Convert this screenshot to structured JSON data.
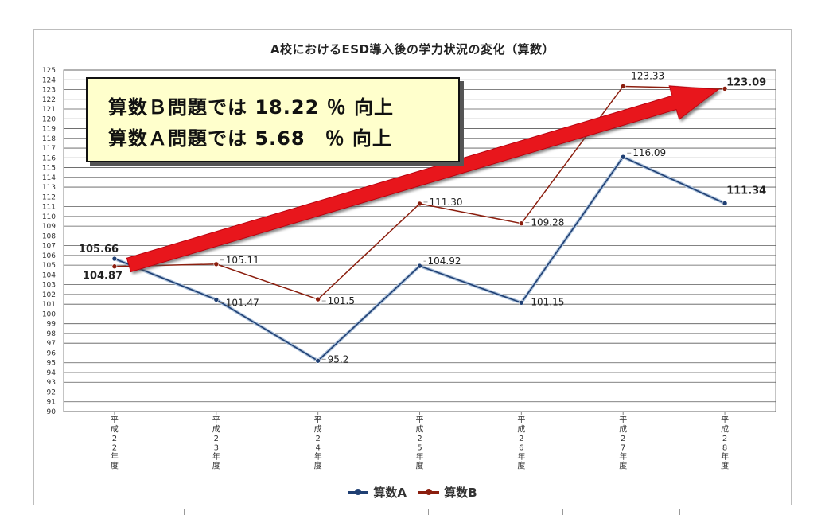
{
  "chart_data": {
    "type": "line",
    "title": "A校におけるESD導入後の学力状況の変化（算数）",
    "categories": [
      "平成22年度",
      "平成23年度",
      "平成24年度",
      "平成25年度",
      "平成26年度",
      "平成27年度",
      "平成28年度"
    ],
    "series": [
      {
        "name": "算数A",
        "color": "#1f3f73",
        "values": [
          105.66,
          101.47,
          95.2,
          104.92,
          101.15,
          116.09,
          111.34
        ],
        "labels": [
          "105.66",
          "101.47",
          "95.2",
          "104.92",
          "101.15",
          "116.09",
          "111.34"
        ]
      },
      {
        "name": "算数B",
        "color": "#8b1e0e",
        "values": [
          104.87,
          105.11,
          101.5,
          111.3,
          109.28,
          123.33,
          123.09
        ],
        "labels": [
          "104.87",
          "105.11",
          "101.5",
          "111.30",
          "109.28",
          "123.33",
          "123.09"
        ]
      }
    ],
    "ylim": [
      90,
      125
    ],
    "y_tick_step": 1,
    "grid": true,
    "legend_position": "bottom",
    "annotation": {
      "lines": [
        "算数Ｂ問題では 18.22 ％ 向上",
        "算数Ａ問題では 5.68　％ 向上"
      ],
      "arrow_color": "#e8141e"
    }
  }
}
